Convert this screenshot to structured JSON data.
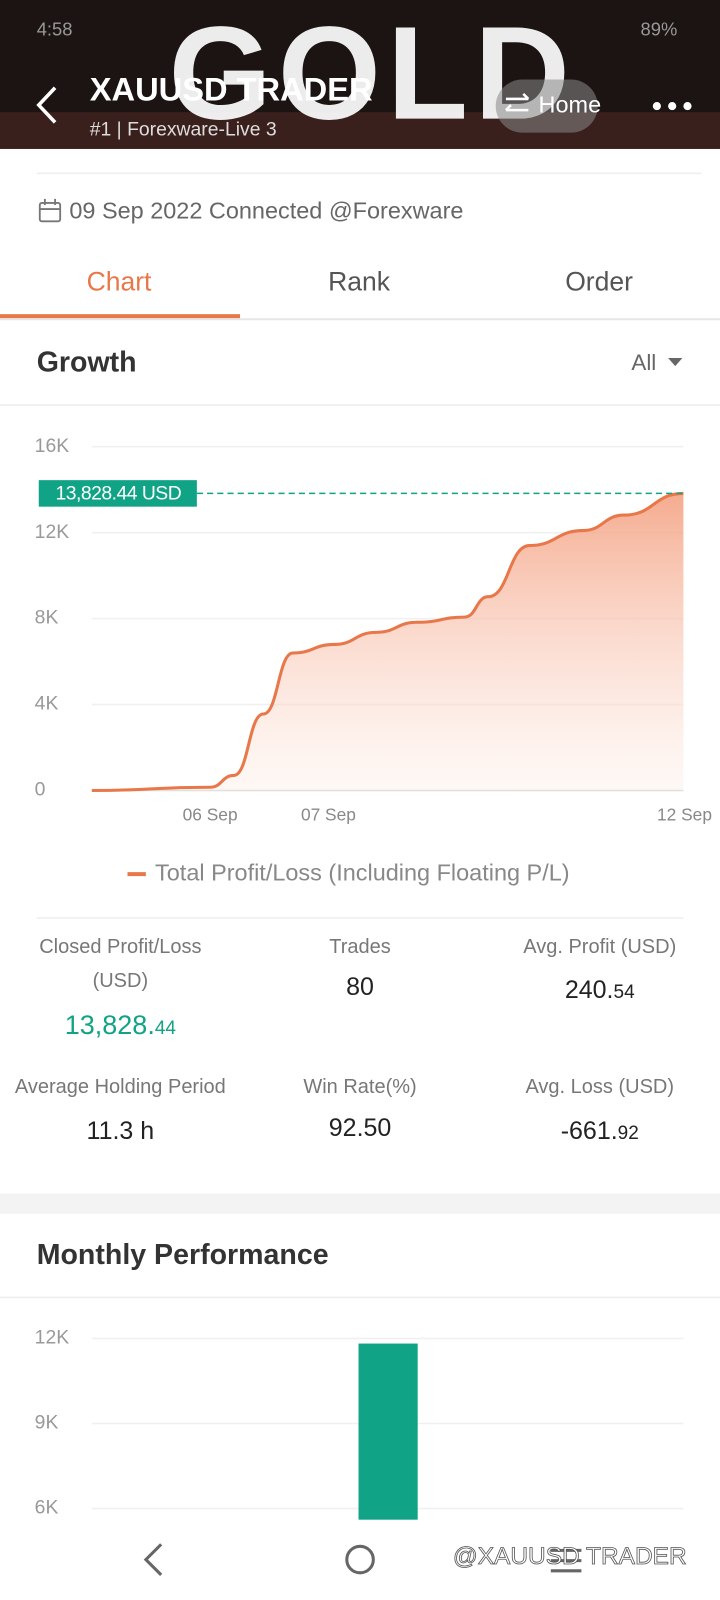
{
  "status_bar": {
    "time": "4:58",
    "battery": "89%"
  },
  "header": {
    "background_text": "GOLD",
    "title": "XAUUSD TRADER",
    "subtitle": "#1 | Forexware-Live 3",
    "home": "Home"
  },
  "connected": "09 Sep 2022 Connected @Forexware",
  "tabs": {
    "items": [
      "Chart",
      "Rank",
      "Order"
    ],
    "active": 0
  },
  "chart_data": [
    {
      "type": "line",
      "title": "Growth",
      "filter": "All",
      "xlim": [
        0,
        100
      ],
      "xticks": [
        {
          "value": 20,
          "label": "06 Sep"
        },
        {
          "value": 40,
          "label": "07 Sep"
        },
        {
          "value": 100,
          "label": "12 Sep"
        }
      ],
      "ylim": [
        0,
        16000
      ],
      "yticks": [
        0,
        {
          "value": 4000,
          "label": "4K"
        },
        {
          "value": 8000,
          "label": "8K"
        },
        {
          "value": 12000,
          "label": "12K"
        },
        {
          "value": 16000,
          "label": "16K"
        }
      ],
      "grid": true,
      "annotation": {
        "value": 13828.44,
        "label": "13,828.44 USD",
        "color": "#10a385"
      },
      "series": [
        {
          "name": "Total Profit/Loss (Including Floating P/L)",
          "color": "#e8774a",
          "x": [
            0,
            20,
            24,
            29,
            34,
            41,
            48,
            55,
            63,
            67,
            74,
            83,
            90,
            100
          ],
          "values": [
            0,
            150,
            700,
            3560,
            6400,
            6800,
            7360,
            7830,
            8070,
            9020,
            11400,
            12100,
            12820,
            13828.44
          ]
        }
      ]
    },
    {
      "type": "bar",
      "title": "Monthly Performance",
      "categories": [
        null
      ],
      "values": [
        11820
      ],
      "color": "#10a385",
      "ylim": [
        5600,
        12800
      ],
      "yticks": [
        {
          "value": 6000,
          "label": "6K"
        },
        {
          "value": 9000,
          "label": "9K"
        },
        {
          "value": 12000,
          "label": "12K"
        }
      ],
      "grid": true
    }
  ],
  "stats": [
    {
      "label": "Closed Profit/Loss (USD)",
      "value": "13,828.44"
    },
    {
      "label": "Trades",
      "value": "80"
    },
    {
      "label": "Avg. Profit (USD)",
      "value": "240.54"
    },
    {
      "label": "Average Holding Period",
      "value": "11.3 h"
    },
    {
      "label": "Win Rate(%)",
      "value": "92.50"
    },
    {
      "label": "Avg. Loss (USD)",
      "value": "-661.92"
    }
  ],
  "watermark": "@XAUUSD TRADER"
}
